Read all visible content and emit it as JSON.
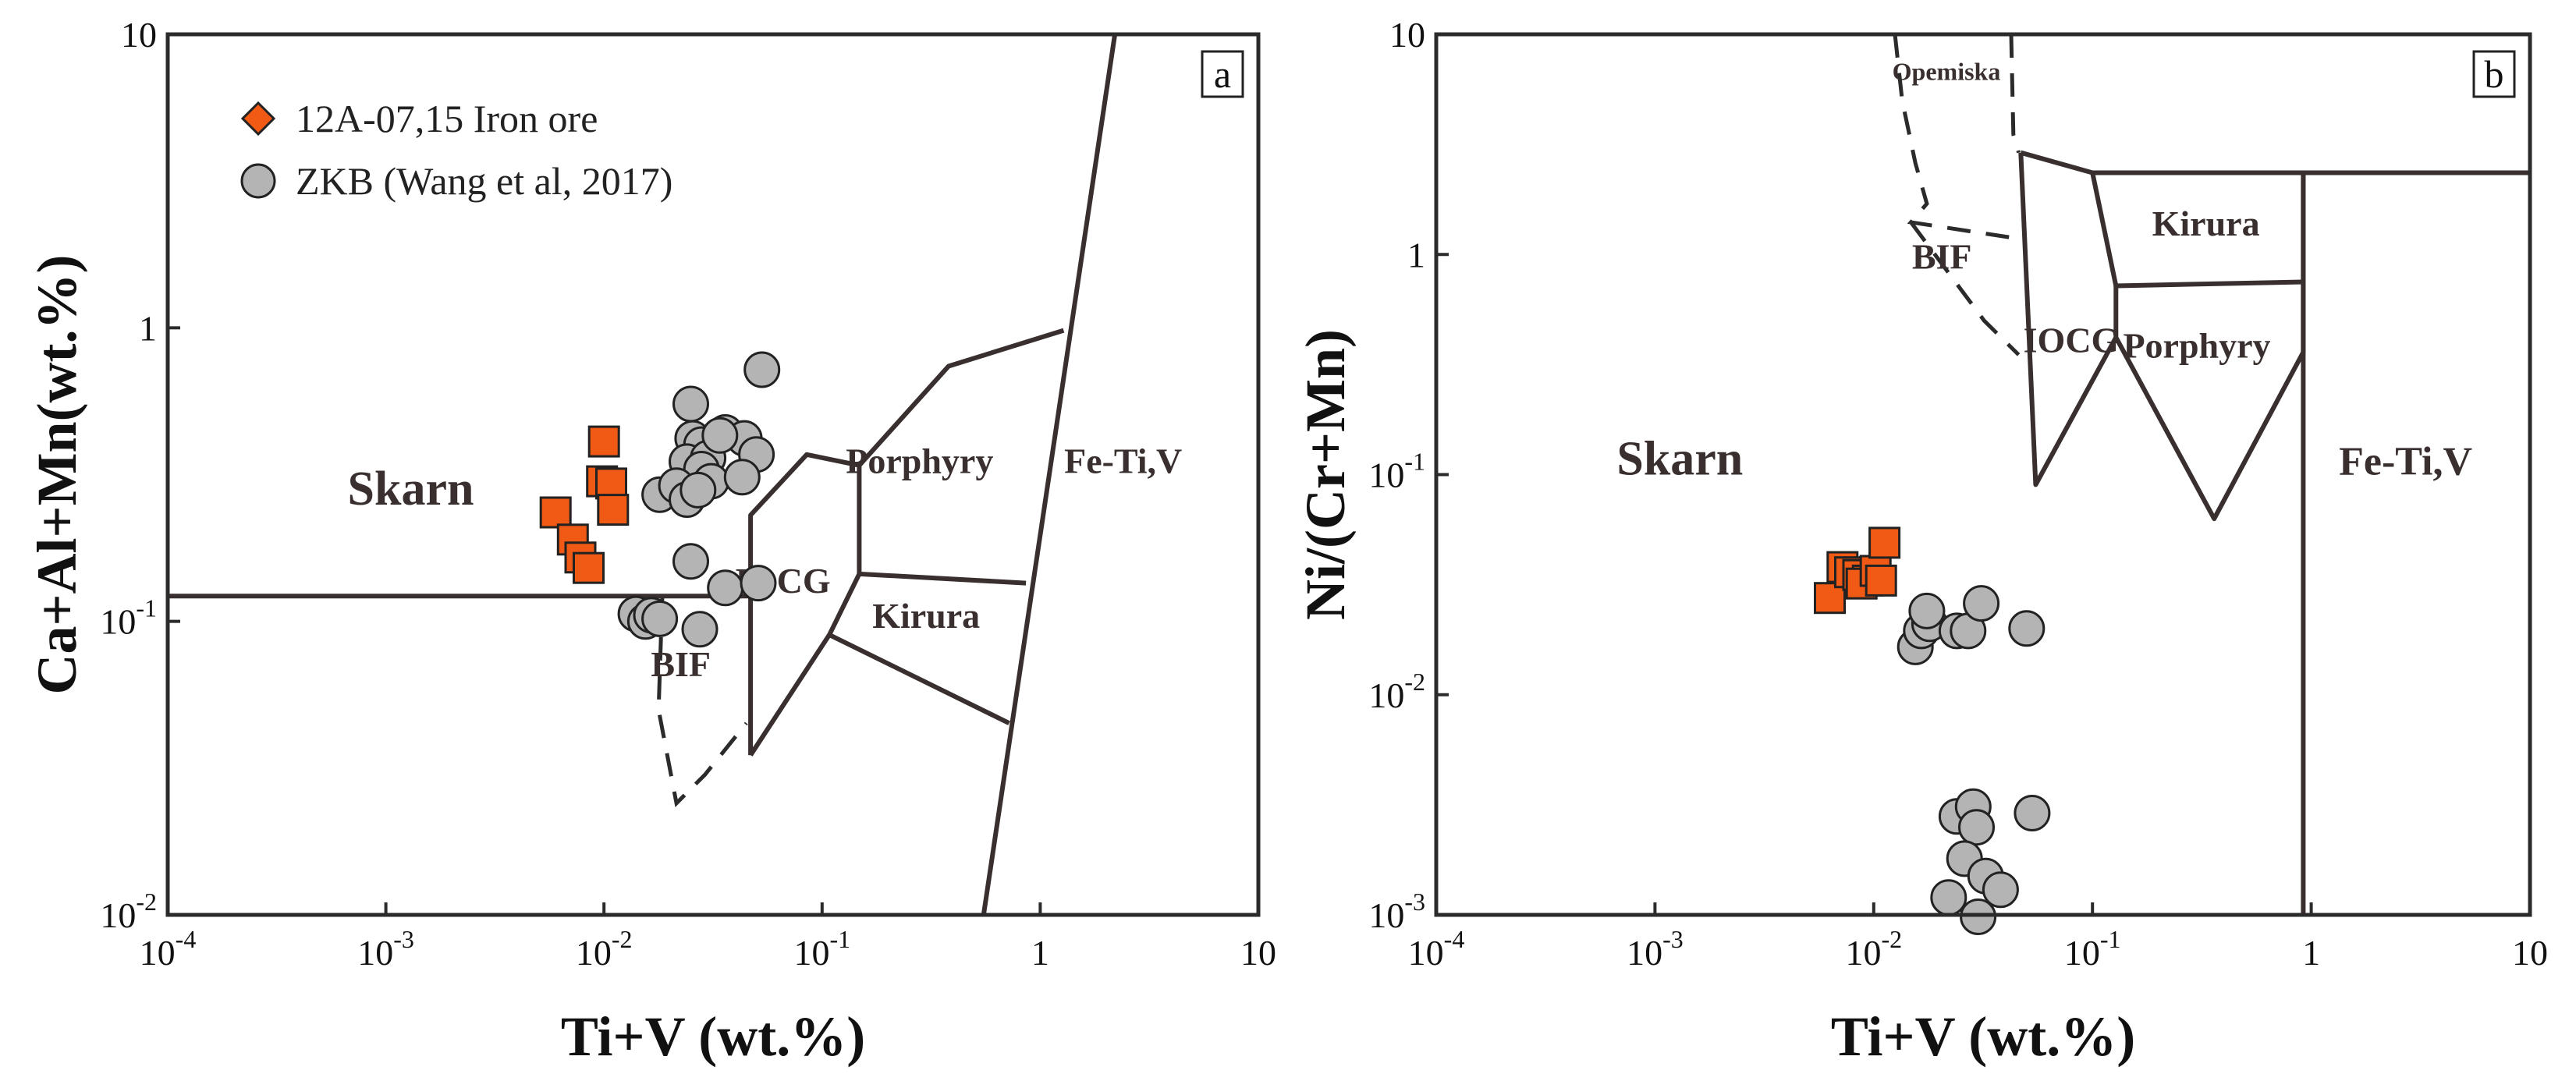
{
  "chart_data": [
    {
      "panel": "a",
      "type": "scatter",
      "xlabel": "Ti+V (wt.%)",
      "ylabel": "Ca+Al+Mn(wt.%)",
      "xscale": "log",
      "yscale": "log",
      "xlim": [
        0.0001,
        10
      ],
      "ylim": [
        0.01,
        10
      ],
      "xticks": [
        {
          "v": 0.0001,
          "base": "10",
          "exp": "-4"
        },
        {
          "v": 0.001,
          "base": "10",
          "exp": "-3"
        },
        {
          "v": 0.01,
          "base": "10",
          "exp": "-2"
        },
        {
          "v": 0.1,
          "base": "10",
          "exp": "-1"
        },
        {
          "v": 1,
          "base": "1",
          "exp": ""
        },
        {
          "v": 10,
          "base": "10",
          "exp": ""
        }
      ],
      "yticks": [
        {
          "v": 0.01,
          "base": "10",
          "exp": "-2"
        },
        {
          "v": 0.1,
          "base": "10",
          "exp": "-1"
        },
        {
          "v": 1,
          "base": "1",
          "exp": ""
        },
        {
          "v": 10,
          "base": "10",
          "exp": ""
        }
      ],
      "legend": {
        "position": "top-left",
        "entries": [
          {
            "label": "12A-07,15   Iron ore",
            "marker": "diamond",
            "color": "#f05a14"
          },
          {
            "label": "ZKB  (Wang et al, 2017)",
            "marker": "circle",
            "color": "#b4b4b4"
          }
        ]
      },
      "field_labels": [
        {
          "text": "Skarn",
          "x": 0.0013,
          "y": 0.25,
          "size": 62
        },
        {
          "text": "Porphyry",
          "x": 0.28,
          "y": 0.32,
          "size": 46
        },
        {
          "text": "Fe-Ti,V",
          "x": 2.4,
          "y": 0.32,
          "size": 46
        },
        {
          "text": "IOCG",
          "x": 0.066,
          "y": 0.125,
          "size": 46
        },
        {
          "text": "Kirura",
          "x": 0.3,
          "y": 0.095,
          "size": 46
        },
        {
          "text": "BIF",
          "x": 0.0225,
          "y": 0.065,
          "size": 46
        }
      ],
      "field_lines": [
        {
          "style": "solid",
          "points": [
            [
              0.0001,
              0.122
            ],
            [
              0.047,
              0.122
            ]
          ]
        },
        {
          "style": "solid",
          "points": [
            [
              0.047,
              0.035
            ],
            [
              0.047,
              0.23
            ],
            [
              0.085,
              0.37
            ],
            [
              0.148,
              0.34
            ],
            [
              0.148,
              0.145
            ],
            [
              0.108,
              0.09
            ],
            [
              0.047,
              0.035
            ]
          ]
        },
        {
          "style": "solid",
          "points": [
            [
              0.148,
              0.34
            ],
            [
              0.38,
              0.74
            ],
            [
              1.28,
              0.98
            ]
          ]
        },
        {
          "style": "solid",
          "points": [
            [
              0.148,
              0.145
            ],
            [
              0.86,
              0.135
            ]
          ]
        },
        {
          "style": "solid",
          "points": [
            [
              0.108,
              0.09
            ],
            [
              0.72,
              0.045
            ]
          ]
        },
        {
          "style": "solid",
          "points": [
            [
              0.55,
              0.01
            ],
            [
              2.2,
              10
            ]
          ]
        },
        {
          "style": "dashed",
          "points": [
            [
              0.0185,
              0.12
            ],
            [
              0.0178,
              0.05
            ],
            [
              0.0215,
              0.024
            ],
            [
              0.029,
              0.03
            ],
            [
              0.045,
              0.045
            ]
          ]
        }
      ],
      "series": [
        {
          "name": "12A-07,15   Iron ore",
          "marker": "square",
          "color": "#f05a14",
          "points": [
            [
              0.006,
              0.235
            ],
            [
              0.0072,
              0.19
            ],
            [
              0.0078,
              0.165
            ],
            [
              0.0085,
              0.152
            ],
            [
              0.01,
              0.41
            ],
            [
              0.0098,
              0.3
            ],
            [
              0.0108,
              0.295
            ],
            [
              0.011,
              0.24
            ]
          ]
        },
        {
          "name": "ZKB  (Wang et al, 2017)",
          "marker": "circle",
          "color": "#b4b4b4",
          "points": [
            [
              0.025,
              0.55
            ],
            [
              0.053,
              0.72
            ],
            [
              0.0255,
              0.42
            ],
            [
              0.028,
              0.4
            ],
            [
              0.036,
              0.44
            ],
            [
              0.044,
              0.42
            ],
            [
              0.024,
              0.35
            ],
            [
              0.03,
              0.36
            ],
            [
              0.034,
              0.43
            ],
            [
              0.05,
              0.37
            ],
            [
              0.028,
              0.33
            ],
            [
              0.031,
              0.3
            ],
            [
              0.018,
              0.27
            ],
            [
              0.0215,
              0.29
            ],
            [
              0.024,
              0.26
            ],
            [
              0.027,
              0.28
            ],
            [
              0.043,
              0.31
            ],
            [
              0.025,
              0.16
            ],
            [
              0.036,
              0.13
            ],
            [
              0.051,
              0.135
            ],
            [
              0.014,
              0.106
            ],
            [
              0.0155,
              0.1
            ],
            [
              0.0165,
              0.105
            ],
            [
              0.018,
              0.102
            ],
            [
              0.0275,
              0.094
            ]
          ]
        }
      ]
    },
    {
      "panel": "b",
      "type": "scatter",
      "xlabel": "Ti+V (wt.%)",
      "ylabel": "Ni/(Cr+Mn)",
      "xscale": "log",
      "yscale": "log",
      "xlim": [
        0.0001,
        10
      ],
      "ylim": [
        0.001,
        10
      ],
      "xticks": [
        {
          "v": 0.0001,
          "base": "10",
          "exp": "-4"
        },
        {
          "v": 0.001,
          "base": "10",
          "exp": "-3"
        },
        {
          "v": 0.01,
          "base": "10",
          "exp": "-2"
        },
        {
          "v": 0.1,
          "base": "10",
          "exp": "-1"
        },
        {
          "v": 1,
          "base": "1",
          "exp": ""
        },
        {
          "v": 10,
          "base": "10",
          "exp": ""
        }
      ],
      "yticks": [
        {
          "v": 0.001,
          "base": "10",
          "exp": "-3"
        },
        {
          "v": 0.01,
          "base": "10",
          "exp": "-2"
        },
        {
          "v": 0.1,
          "base": "10",
          "exp": "-1"
        },
        {
          "v": 1,
          "base": "1",
          "exp": ""
        },
        {
          "v": 10,
          "base": "10",
          "exp": ""
        }
      ],
      "field_labels": [
        {
          "text": "Opemiska",
          "x": 0.0215,
          "y": 6.2,
          "size": 32
        },
        {
          "text": "Skarn",
          "x": 0.0013,
          "y": 0.1,
          "size": 62
        },
        {
          "text": "Kirura",
          "x": 0.33,
          "y": 1.22,
          "size": 46
        },
        {
          "text": "BIF",
          "x": 0.0205,
          "y": 0.86,
          "size": 46
        },
        {
          "text": "IOCG",
          "x": 0.08,
          "y": 0.36,
          "size": 46
        },
        {
          "text": "Porphyry",
          "x": 0.3,
          "y": 0.34,
          "size": 46
        },
        {
          "text": "Fe-Ti,V",
          "x": 2.7,
          "y": 0.1,
          "size": 52
        }
      ],
      "field_lines": [
        {
          "style": "solid",
          "points": [
            [
              0.047,
              2.9
            ],
            [
              0.055,
              0.09
            ],
            [
              0.128,
              0.42
            ],
            [
              0.36,
              0.063
            ],
            [
              0.92,
              0.36
            ],
            [
              0.92,
              2.35
            ]
          ]
        },
        {
          "style": "solid",
          "points": [
            [
              0.047,
              2.9
            ],
            [
              0.1,
              2.35
            ],
            [
              9.8,
              2.35
            ]
          ]
        },
        {
          "style": "solid",
          "points": [
            [
              0.1,
              2.35
            ],
            [
              0.128,
              0.72
            ],
            [
              0.92,
              0.75
            ]
          ]
        },
        {
          "style": "solid",
          "points": [
            [
              0.128,
              0.72
            ],
            [
              0.128,
              0.42
            ]
          ]
        },
        {
          "style": "solid",
          "points": [
            [
              0.92,
              0.001
            ],
            [
              0.92,
              2.35
            ]
          ]
        },
        {
          "style": "dashed",
          "points": [
            [
              0.0125,
              10
            ],
            [
              0.0135,
              5.0
            ],
            [
              0.0155,
              2.6
            ],
            [
              0.0175,
              1.7
            ],
            [
              0.0148,
              1.4
            ],
            [
              0.046,
              1.18
            ]
          ]
        },
        {
          "style": "dashed",
          "points": [
            [
              0.0148,
              1.4
            ],
            [
              0.032,
              0.5
            ],
            [
              0.046,
              0.35
            ]
          ]
        },
        {
          "style": "dashed",
          "points": [
            [
              0.0425,
              10
            ],
            [
              0.0435,
              3.5
            ],
            [
              0.046,
              2.9
            ]
          ]
        }
      ],
      "series": [
        {
          "name": "12A-07,15   Iron ore",
          "marker": "square",
          "color": "#f05a14",
          "points": [
            [
              0.0063,
              0.0275
            ],
            [
              0.0072,
              0.038
            ],
            [
              0.0078,
              0.036
            ],
            [
              0.0085,
              0.035
            ],
            [
              0.0094,
              0.033
            ],
            [
              0.0088,
              0.032
            ],
            [
              0.0102,
              0.0365
            ],
            [
              0.0108,
              0.033
            ],
            [
              0.0112,
              0.049
            ]
          ]
        },
        {
          "name": "ZKB  (Wang et al, 2017)",
          "marker": "circle",
          "color": "#b4b4b4",
          "points": [
            [
              0.0155,
              0.0165
            ],
            [
              0.0165,
              0.0195
            ],
            [
              0.018,
              0.021
            ],
            [
              0.0175,
              0.024
            ],
            [
              0.024,
              0.0195
            ],
            [
              0.027,
              0.0195
            ],
            [
              0.031,
              0.026
            ],
            [
              0.05,
              0.02
            ],
            [
              0.024,
              0.0028
            ],
            [
              0.0285,
              0.0031
            ],
            [
              0.0295,
              0.0025
            ],
            [
              0.026,
              0.0018
            ],
            [
              0.0325,
              0.0015
            ],
            [
              0.038,
              0.0013
            ],
            [
              0.022,
              0.0012
            ],
            [
              0.053,
              0.0029
            ],
            [
              0.03,
              0.00098
            ]
          ]
        }
      ]
    }
  ]
}
